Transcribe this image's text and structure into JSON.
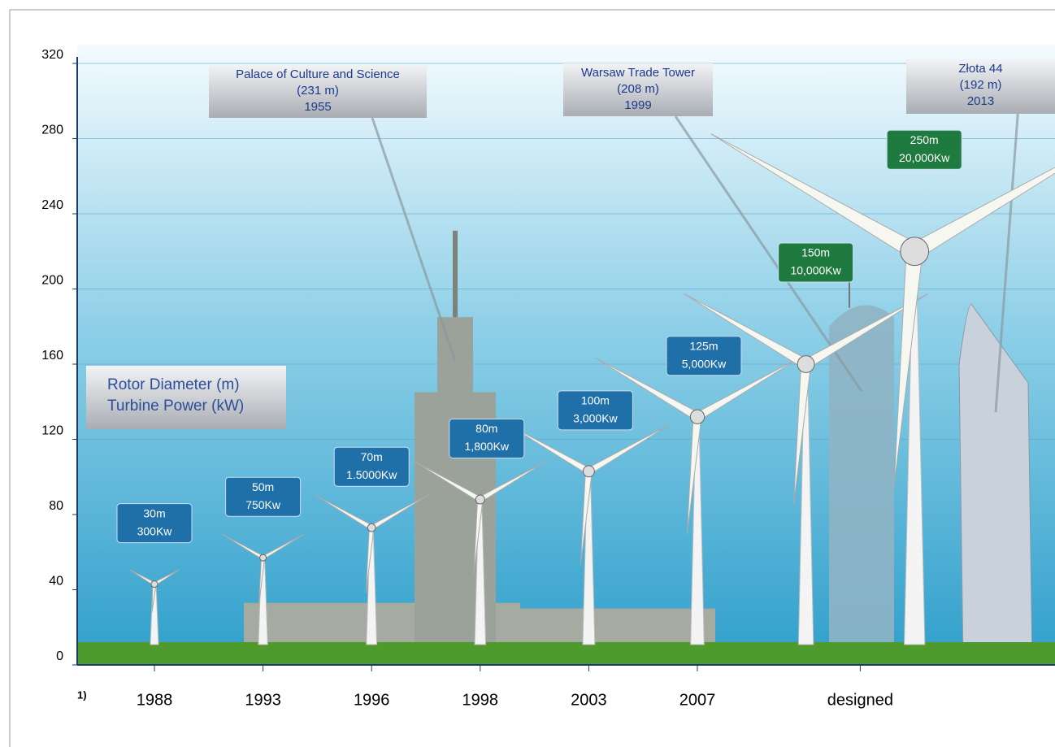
{
  "chart_data": {
    "type": "turbine",
    "legend_lines": [
      "Rotor Diameter (m)",
      "Turbine Power (kW)"
    ],
    "footnote": "1)",
    "categories": [
      "1988",
      "1993",
      "1996",
      "1998",
      "2003",
      "2007",
      "designed"
    ],
    "ylim": [
      0,
      320
    ],
    "yticks": [
      0,
      40,
      80,
      120,
      160,
      200,
      240,
      280,
      320
    ],
    "grid": true,
    "turbines": [
      {
        "hub_height": 43,
        "rotor_diameter": 30,
        "label_lines": [
          "30m",
          "300Kw"
        ],
        "color": "#1f6fa8"
      },
      {
        "hub_height": 57,
        "rotor_diameter": 50,
        "label_lines": [
          "50m",
          "750Kw"
        ],
        "color": "#1f6fa8"
      },
      {
        "hub_height": 73,
        "rotor_diameter": 70,
        "label_lines": [
          "70m",
          "1.5000Kw"
        ],
        "color": "#1f6fa8"
      },
      {
        "hub_height": 88,
        "rotor_diameter": 80,
        "label_lines": [
          "80m",
          "1,800Kw"
        ],
        "color": "#1f6fa8"
      },
      {
        "hub_height": 103,
        "rotor_diameter": 100,
        "label_lines": [
          "100m",
          "3,000Kw"
        ],
        "color": "#1f6fa8"
      },
      {
        "hub_height": 132,
        "rotor_diameter": 125,
        "label_lines": [
          "125m",
          "5,000Kw"
        ],
        "color": "#1f6fa8"
      },
      {
        "hub_height": 160,
        "rotor_diameter": 150,
        "label_lines": [
          "150m",
          "10,000Kw"
        ],
        "color": "#1e7a3e"
      },
      {
        "hub_height": 220,
        "rotor_diameter": 250,
        "label_lines": [
          "250m",
          "20,000Kw"
        ],
        "color": "#1e7a3e"
      }
    ],
    "buildings": [
      {
        "height": 231,
        "label_lines": [
          "Palace of Culture and Science",
          "(231 m)",
          "1955"
        ]
      },
      {
        "height": 208,
        "label_lines": [
          "Warsaw Trade Tower",
          "(208 m)",
          "1999"
        ]
      },
      {
        "height": 192,
        "label_lines": [
          "Złota 44",
          "(192 m)",
          "2013"
        ]
      }
    ]
  }
}
